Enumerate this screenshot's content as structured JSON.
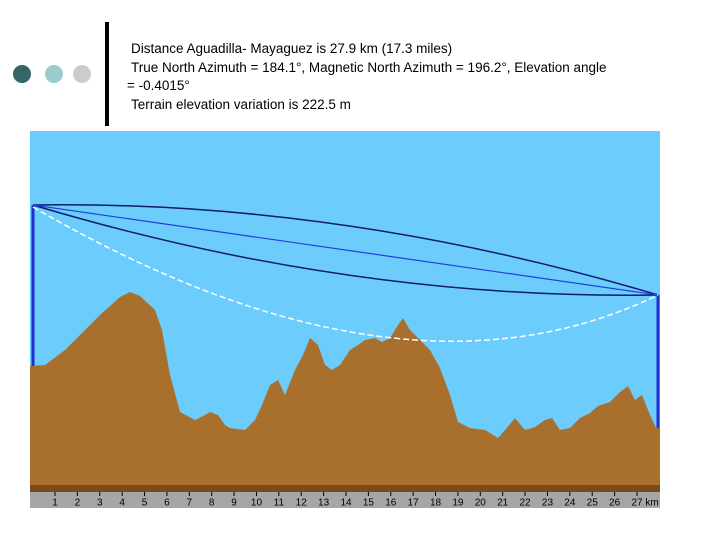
{
  "text_lines": [
    "Distance  Aguadilla- Mayaguez is 27.9 km (17.3 miles)",
    "True North Azimuth = 184.1°, Magnetic North Azimuth = 196.2°, Elevation angle",
    "= -0.4015°",
    "Terrain elevation variation is 222.5 m"
  ],
  "profile": {
    "x_ticks": [
      1,
      2,
      3,
      4,
      5,
      6,
      7,
      8,
      9,
      10,
      11,
      12,
      13,
      14,
      15,
      16,
      17,
      18,
      19,
      20,
      21,
      22,
      23,
      24,
      25,
      26,
      27
    ],
    "unit": "km"
  }
}
